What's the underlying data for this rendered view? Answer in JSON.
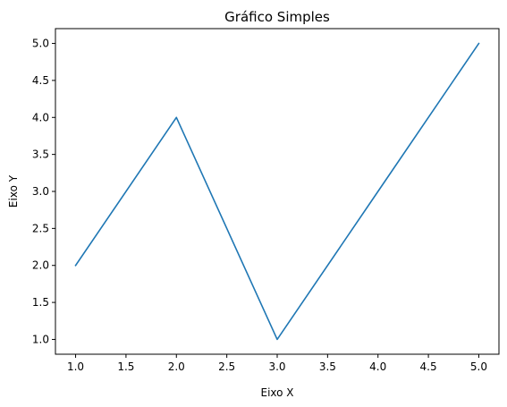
{
  "chart_data": {
    "type": "line",
    "title": "Gráfico Simples",
    "xlabel": "Eixo X",
    "ylabel": "Eixo Y",
    "x": [
      1,
      2,
      3,
      4,
      5
    ],
    "series": [
      {
        "values": [
          2,
          4,
          1,
          3,
          5
        ],
        "color": "#1f77b4"
      }
    ],
    "xlim": [
      0.8,
      5.2
    ],
    "ylim": [
      0.8,
      5.2
    ],
    "xticks": [
      1.0,
      1.5,
      2.0,
      2.5,
      3.0,
      3.5,
      4.0,
      4.5,
      5.0
    ],
    "yticks": [
      1.0,
      1.5,
      2.0,
      2.5,
      3.0,
      3.5,
      4.0,
      4.5,
      5.0
    ],
    "xtick_labels": [
      "1.0",
      "1.5",
      "2.0",
      "2.5",
      "3.0",
      "3.5",
      "4.0",
      "4.5",
      "5.0"
    ],
    "ytick_labels": [
      "1.0",
      "1.5",
      "2.0",
      "2.5",
      "3.0",
      "3.5",
      "4.0",
      "4.5",
      "5.0"
    ],
    "grid": false,
    "legend": false
  }
}
